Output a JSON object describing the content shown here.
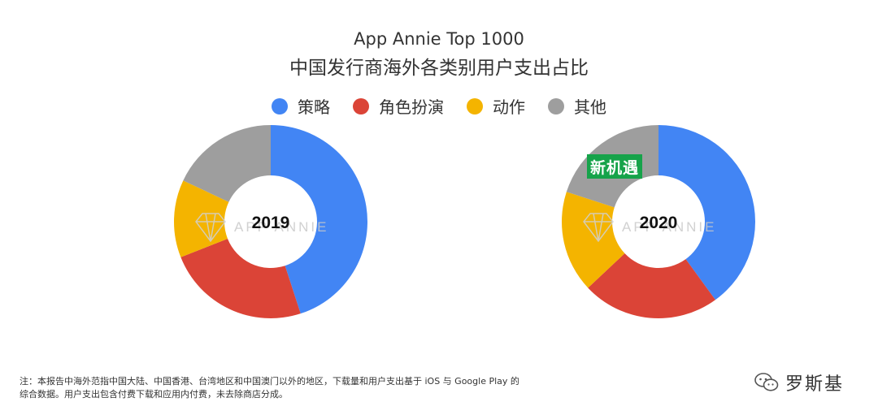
{
  "title_line1": "App Annie Top 1000",
  "title_line2": "中国发行商海外各类别用户支出占比",
  "colors": {
    "strategy": "#4285f4",
    "rpg": "#db4437",
    "action": "#f4b400",
    "other": "#9e9e9e",
    "badge": "#16a34a"
  },
  "watermark": "APP ANNIE",
  "badge_text": "新机遇",
  "footnote_line1": "注：本报告中海外范指中国大陆、中国香港、台湾地区和中国澳门以外的地区，下载量和用户支出基于 iOS 与 Google Play 的",
  "footnote_line2": "综合数据。用户支出包含付费下载和应用内付费，未去除商店分成。",
  "brand_text": "罗斯基",
  "chart_data": [
    {
      "type": "pie",
      "center_label": "2019",
      "categories": [
        "策略",
        "角色扮演",
        "动作",
        "其他"
      ],
      "values": [
        45,
        24,
        13,
        18
      ]
    },
    {
      "type": "pie",
      "center_label": "2020",
      "categories": [
        "策略",
        "角色扮演",
        "动作",
        "其他"
      ],
      "values": [
        40,
        23,
        17,
        20
      ]
    }
  ],
  "legend": [
    {
      "label": "策略",
      "color": "#4285f4"
    },
    {
      "label": "角色扮演",
      "color": "#db4437"
    },
    {
      "label": "动作",
      "color": "#f4b400"
    },
    {
      "label": "其他",
      "color": "#9e9e9e"
    }
  ]
}
